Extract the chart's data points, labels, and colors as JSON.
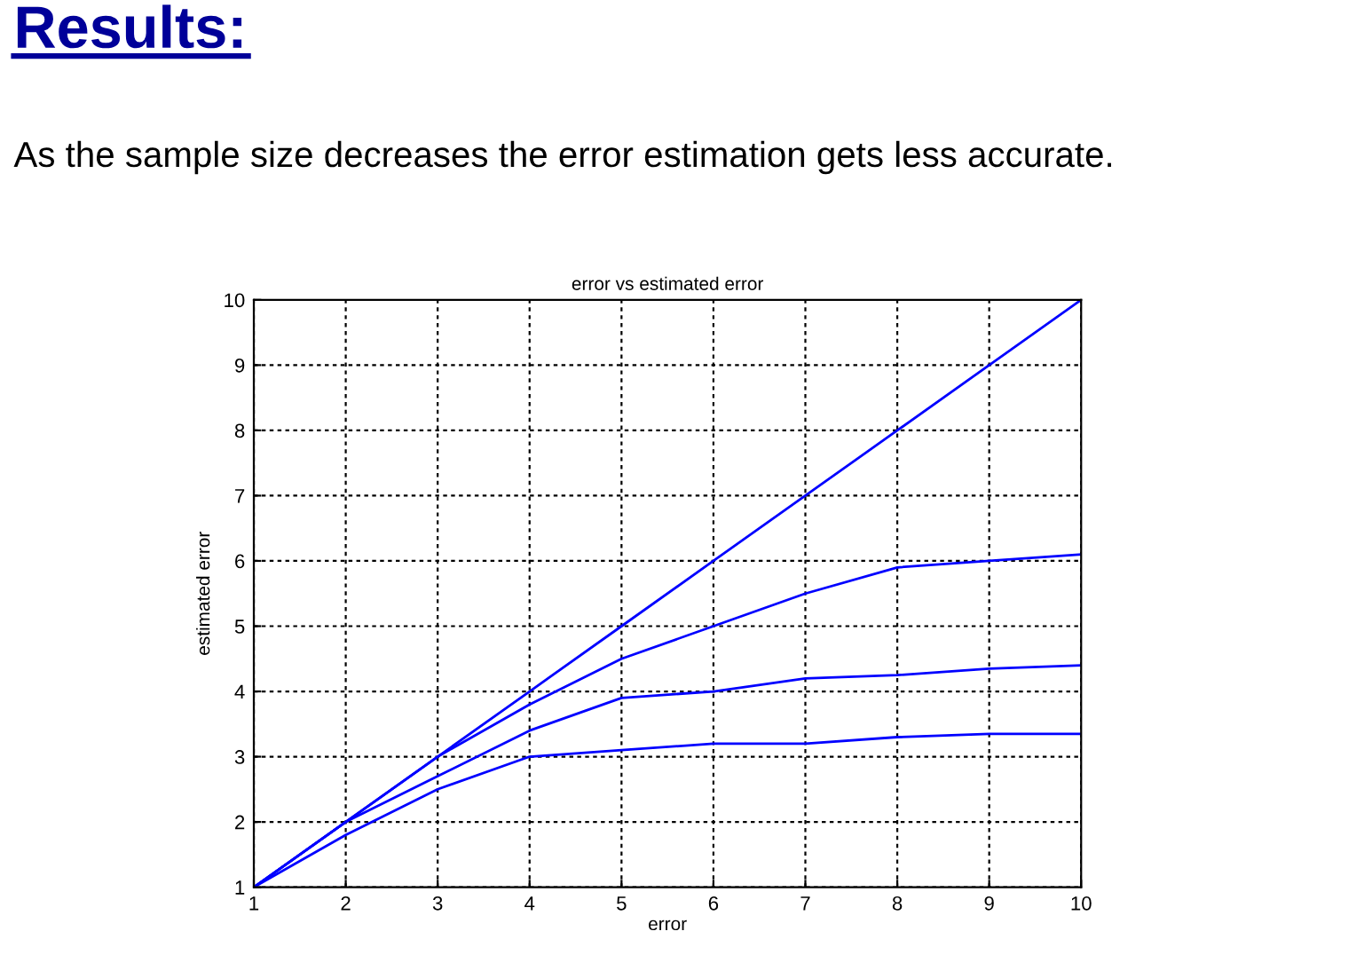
{
  "chart_data": {
    "type": "line",
    "title": "Results:",
    "subtitle": "As the sample size decreases the error estimation gets less accurate.",
    "annotations": [
      "error vs estimated error"
    ],
    "xlabel": "error",
    "ylabel": "estimated error",
    "x": [
      1,
      2,
      3,
      4,
      5,
      6,
      7,
      8,
      9,
      10
    ],
    "series": [
      {
        "color": "#0000ff",
        "values": [
          1,
          2,
          3,
          4,
          5,
          6,
          7,
          8,
          9,
          10
        ]
      },
      {
        "color": "#0000ff",
        "values": [
          1,
          2,
          3,
          3.8,
          4.5,
          5,
          5.5,
          5.9,
          6,
          6.1
        ]
      },
      {
        "color": "#0000ff",
        "values": [
          1,
          2,
          2.7,
          3.4,
          3.9,
          4,
          4.2,
          4.25,
          4.35,
          4.4
        ]
      },
      {
        "color": "#0000ff",
        "values": [
          1,
          1.8,
          2.5,
          3,
          3.1,
          3.2,
          3.2,
          3.3,
          3.35,
          3.35
        ]
      }
    ],
    "xlim": [
      1,
      10
    ],
    "ylim": [
      1,
      10
    ],
    "xticks": [
      1,
      2,
      3,
      4,
      5,
      6,
      7,
      8,
      9,
      10
    ],
    "yticks": [
      1,
      2,
      3,
      4,
      5,
      6,
      7,
      8,
      9,
      10
    ],
    "grid": true,
    "legend": false,
    "marker": "none",
    "line_style": "solid"
  }
}
